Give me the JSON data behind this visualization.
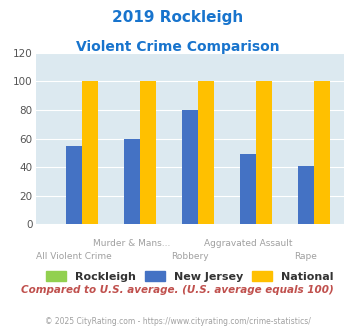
{
  "title_line1": "2019 Rockleigh",
  "title_line2": "Violent Crime Comparison",
  "title_color": "#1874cd",
  "categories": [
    "All Violent Crime",
    "Murder & Mans...",
    "Robbery",
    "Aggravated Assault",
    "Rape"
  ],
  "rockleigh": [
    0,
    0,
    0,
    0,
    0
  ],
  "new_jersey": [
    55,
    60,
    80,
    49,
    41
  ],
  "national": [
    100,
    100,
    100,
    100,
    100
  ],
  "bar_color_rockleigh": "#92d050",
  "bar_color_nj": "#4472c4",
  "bar_color_national": "#ffc000",
  "ylim": [
    0,
    120
  ],
  "yticks": [
    0,
    20,
    40,
    60,
    80,
    100,
    120
  ],
  "cat_labels_top": [
    "",
    "Murder & Mans...",
    "",
    "Aggravated Assault",
    ""
  ],
  "cat_labels_bot": [
    "All Violent Crime",
    "",
    "Robbery",
    "",
    "Rape"
  ],
  "xlabel_color": "#a0a0a0",
  "bg_color": "#dce9f0",
  "grid_color": "#ffffff",
  "legend_labels": [
    "Rockleigh",
    "New Jersey",
    "National"
  ],
  "footnote1": "Compared to U.S. average. (U.S. average equals 100)",
  "footnote1_color": "#c0504d",
  "footnote2": "© 2025 CityRating.com - https://www.cityrating.com/crime-statistics/",
  "footnote2_color": "#a0a0a0",
  "bar_width": 0.28
}
